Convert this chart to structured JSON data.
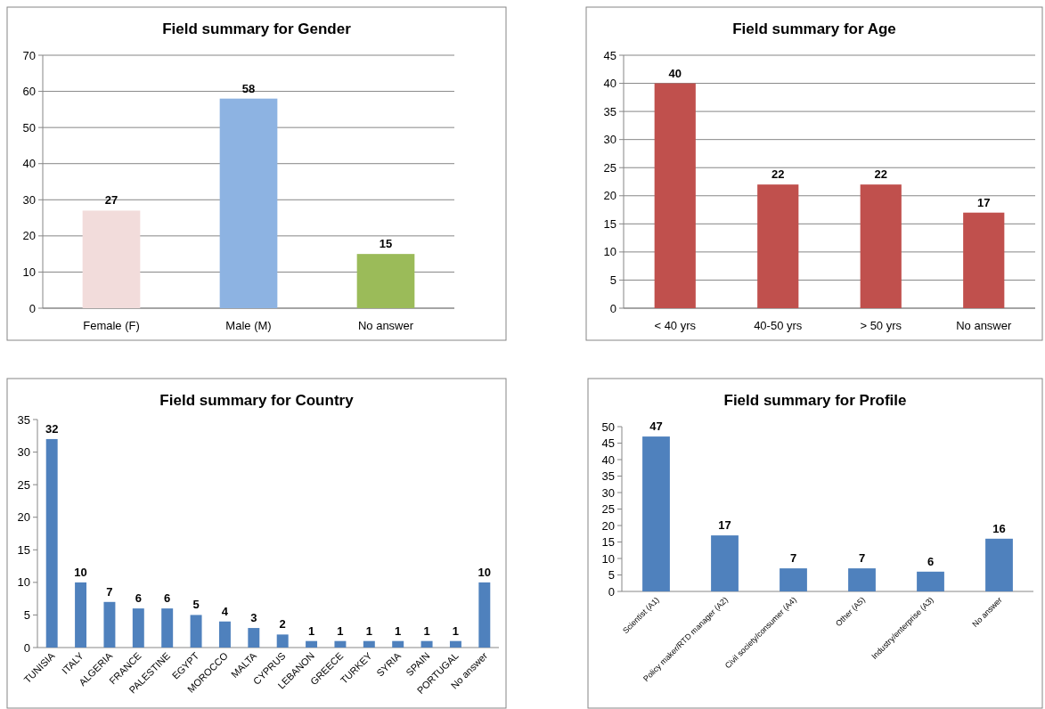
{
  "chart_data": [
    {
      "type": "bar",
      "title": "Field summary for Gender",
      "categories": [
        "Female (F)",
        "Male (M)",
        "No answer"
      ],
      "values": [
        27,
        58,
        15
      ],
      "colors": [
        "#f2dcdb",
        "#8db3e2",
        "#9bbb59"
      ],
      "ylim": [
        0,
        70
      ],
      "yticks": [
        0,
        10,
        20,
        30,
        40,
        50,
        60,
        70
      ],
      "grid": "y",
      "data_labels": true
    },
    {
      "type": "bar",
      "title": "Field summary for Age",
      "categories": [
        "< 40 yrs",
        "40-50 yrs",
        "> 50 yrs",
        "No answer"
      ],
      "values": [
        40,
        22,
        22,
        17
      ],
      "colors": [
        "#c0504d",
        "#c0504d",
        "#c0504d",
        "#c0504d"
      ],
      "ylim": [
        0,
        45
      ],
      "yticks": [
        0,
        5,
        10,
        15,
        20,
        25,
        30,
        35,
        40,
        45
      ],
      "grid": "y",
      "data_labels": true
    },
    {
      "type": "bar",
      "title": "Field summary for Country",
      "categories": [
        "TUNISIA",
        "ITALY",
        "ALGERIA",
        "FRANCE",
        "PALESTINE",
        "EGYPT",
        "MOROCCO",
        "MALTA",
        "CYPRUS",
        "LEBANON",
        "GREECE",
        "TURKEY",
        "SYRIA",
        "SPAIN",
        "PORTUGAL",
        "No answer"
      ],
      "values": [
        32,
        10,
        7,
        6,
        6,
        5,
        4,
        3,
        2,
        1,
        1,
        1,
        1,
        1,
        1,
        10
      ],
      "colors": [
        "#4f81bd",
        "#4f81bd",
        "#4f81bd",
        "#4f81bd",
        "#4f81bd",
        "#4f81bd",
        "#4f81bd",
        "#4f81bd",
        "#4f81bd",
        "#4f81bd",
        "#4f81bd",
        "#4f81bd",
        "#4f81bd",
        "#4f81bd",
        "#4f81bd",
        "#4f81bd"
      ],
      "ylim": [
        0,
        35
      ],
      "yticks": [
        0,
        5,
        10,
        15,
        20,
        25,
        30,
        35
      ],
      "grid": false,
      "data_labels": true
    },
    {
      "type": "bar",
      "title": "Field summary for Profile",
      "categories": [
        "Scientist (A1)",
        "Policy maker/RTD manager (A2)",
        "Civil society/consumer (A4)",
        "Other (A5)",
        "Industry/enterprise (A3)",
        "No answer"
      ],
      "values": [
        47,
        17,
        7,
        7,
        6,
        16
      ],
      "colors": [
        "#4f81bd",
        "#4f81bd",
        "#4f81bd",
        "#4f81bd",
        "#4f81bd",
        "#4f81bd"
      ],
      "ylim": [
        0,
        50
      ],
      "yticks": [
        0,
        5,
        10,
        15,
        20,
        25,
        30,
        35,
        40,
        45,
        50
      ],
      "grid": false,
      "data_labels": true
    }
  ]
}
